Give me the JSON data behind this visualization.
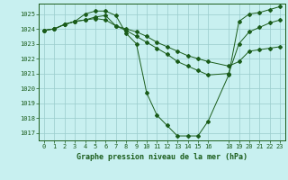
{
  "title": "Graphe pression niveau de la mer (hPa)",
  "bg_color": "#c8f0f0",
  "grid_color": "#99cccc",
  "line_color": "#1a5c1a",
  "xlim": [
    -0.5,
    23.5
  ],
  "ylim": [
    1016.5,
    1025.7
  ],
  "yticks": [
    1017,
    1018,
    1019,
    1020,
    1021,
    1022,
    1023,
    1024,
    1025
  ],
  "xticks": [
    0,
    1,
    2,
    3,
    4,
    5,
    6,
    7,
    8,
    9,
    10,
    11,
    12,
    13,
    14,
    15,
    16,
    18,
    19,
    20,
    21,
    22,
    23
  ],
  "series": [
    {
      "x": [
        0,
        1,
        2,
        3,
        4,
        5,
        6,
        7,
        8,
        9,
        10,
        11,
        12,
        13,
        14,
        15,
        16,
        18,
        19,
        20,
        21,
        22,
        23
      ],
      "y": [
        1023.9,
        1024.0,
        1024.3,
        1024.5,
        1025.0,
        1025.2,
        1025.2,
        1024.9,
        1023.7,
        1023.0,
        1019.7,
        1018.2,
        1017.5,
        1016.8,
        1016.8,
        1016.8,
        1017.8,
        1020.9,
        1024.5,
        1025.0,
        1025.1,
        1025.3,
        1025.5
      ]
    },
    {
      "x": [
        0,
        1,
        2,
        3,
        4,
        5,
        6,
        7,
        8,
        9,
        10,
        11,
        12,
        13,
        14,
        15,
        16,
        18,
        19,
        20,
        21,
        22,
        23
      ],
      "y": [
        1023.9,
        1024.0,
        1024.3,
        1024.5,
        1024.6,
        1024.8,
        1024.9,
        1024.2,
        1023.9,
        1023.5,
        1023.1,
        1022.7,
        1022.3,
        1021.8,
        1021.5,
        1021.2,
        1020.9,
        1021.0,
        1023.0,
        1023.8,
        1024.1,
        1024.4,
        1024.6
      ]
    },
    {
      "x": [
        0,
        1,
        2,
        3,
        4,
        5,
        6,
        7,
        8,
        9,
        10,
        11,
        12,
        13,
        14,
        15,
        16,
        18,
        19,
        20,
        21,
        22,
        23
      ],
      "y": [
        1023.9,
        1024.0,
        1024.3,
        1024.5,
        1024.6,
        1024.7,
        1024.6,
        1024.2,
        1024.0,
        1023.8,
        1023.5,
        1023.1,
        1022.8,
        1022.5,
        1022.2,
        1022.0,
        1021.8,
        1021.5,
        1021.8,
        1022.5,
        1022.6,
        1022.7,
        1022.8
      ]
    }
  ]
}
